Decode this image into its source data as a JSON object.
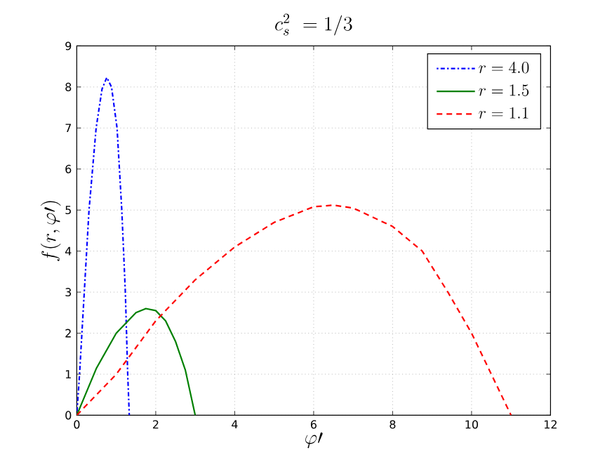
{
  "chart_data": {
    "type": "line",
    "title": "c_s^2 \\ =1/3",
    "xlabel": "\\varphi\\prime",
    "ylabel": "f(r,\\varphi\\prime)",
    "xlim": [
      0,
      12
    ],
    "ylim": [
      0,
      9
    ],
    "xticks": [
      0,
      2,
      4,
      6,
      8,
      10,
      12
    ],
    "yticks": [
      0,
      1,
      2,
      3,
      4,
      5,
      6,
      7,
      8,
      9
    ],
    "grid": true,
    "legend": "top right",
    "series": [
      {
        "name": "r=4.0",
        "color": "#0000ff",
        "line_style": "dotted",
        "x": [
          0,
          0.07,
          0.19,
          0.31,
          0.49,
          0.64,
          0.76,
          0.88,
          1.02,
          1.14,
          1.23,
          1.29,
          1.33
        ],
        "values": [
          0,
          1,
          3,
          5,
          7,
          7.95,
          8.23,
          8.0,
          7,
          5,
          3,
          1,
          0
        ]
      },
      {
        "name": "r=1.5",
        "color": "#008000",
        "line_style": "solid",
        "x": [
          0,
          0.5,
          1,
          1.5,
          1.75,
          2,
          2.25,
          2.5,
          2.75,
          3
        ],
        "values": [
          0,
          1.15,
          2.0,
          2.5,
          2.6,
          2.55,
          2.3,
          1.8,
          1.1,
          0
        ]
      },
      {
        "name": "r=1.1",
        "color": "#ff0000",
        "line_style": "dashed",
        "x": [
          0,
          1,
          2,
          3,
          4,
          5,
          6,
          6.5,
          7,
          8,
          8.75,
          9.4,
          10,
          10.5,
          11
        ],
        "values": [
          0,
          1.0,
          2.3,
          3.3,
          4.1,
          4.7,
          5.08,
          5.12,
          5.05,
          4.6,
          4.0,
          3.0,
          2.0,
          1.0,
          0
        ]
      }
    ]
  }
}
